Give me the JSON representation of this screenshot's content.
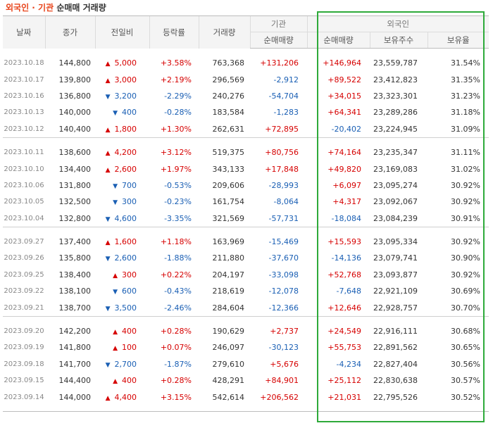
{
  "title": {
    "part1": "외국인",
    "sep": " · ",
    "part2": "기관",
    "part3": " 순매매 거래량"
  },
  "headers": {
    "date": "날짜",
    "close": "종가",
    "change": "전일비",
    "rate": "등락률",
    "volume": "거래량",
    "institution": "기관",
    "foreign": "외국인",
    "inst_net": "순매매량",
    "foreign_net": "순매매량",
    "foreign_holdings": "보유주수",
    "foreign_ratio": "보유율"
  },
  "colors": {
    "up": "#d60000",
    "down": "#1a5fb4",
    "highlight": "#2eaa3a",
    "title_accent": "#e8431a"
  },
  "groups": [
    [
      {
        "date": "2023.10.18",
        "close": "144,800",
        "dir": "up",
        "change": "5,000",
        "rate": "+3.58%",
        "volume": "763,368",
        "inst": "+131,206",
        "fnet": "+146,964",
        "fhold": "23,559,787",
        "fratio": "31.54%"
      },
      {
        "date": "2023.10.17",
        "close": "139,800",
        "dir": "up",
        "change": "3,000",
        "rate": "+2.19%",
        "volume": "296,569",
        "inst": "-2,912",
        "fnet": "+89,522",
        "fhold": "23,412,823",
        "fratio": "31.35%"
      },
      {
        "date": "2023.10.16",
        "close": "136,800",
        "dir": "down",
        "change": "3,200",
        "rate": "-2.29%",
        "volume": "240,276",
        "inst": "-54,704",
        "fnet": "+34,015",
        "fhold": "23,323,301",
        "fratio": "31.23%"
      },
      {
        "date": "2023.10.13",
        "close": "140,000",
        "dir": "down",
        "change": "400",
        "rate": "-0.28%",
        "volume": "183,584",
        "inst": "-1,283",
        "fnet": "+64,341",
        "fhold": "23,289,286",
        "fratio": "31.18%"
      },
      {
        "date": "2023.10.12",
        "close": "140,400",
        "dir": "up",
        "change": "1,800",
        "rate": "+1.30%",
        "volume": "262,631",
        "inst": "+72,895",
        "fnet": "-20,402",
        "fhold": "23,224,945",
        "fratio": "31.09%"
      }
    ],
    [
      {
        "date": "2023.10.11",
        "close": "138,600",
        "dir": "up",
        "change": "4,200",
        "rate": "+3.12%",
        "volume": "519,375",
        "inst": "+80,756",
        "fnet": "+74,164",
        "fhold": "23,235,347",
        "fratio": "31.11%"
      },
      {
        "date": "2023.10.10",
        "close": "134,400",
        "dir": "up",
        "change": "2,600",
        "rate": "+1.97%",
        "volume": "343,133",
        "inst": "+17,848",
        "fnet": "+49,820",
        "fhold": "23,169,083",
        "fratio": "31.02%"
      },
      {
        "date": "2023.10.06",
        "close": "131,800",
        "dir": "down",
        "change": "700",
        "rate": "-0.53%",
        "volume": "209,606",
        "inst": "-28,993",
        "fnet": "+6,097",
        "fhold": "23,095,274",
        "fratio": "30.92%"
      },
      {
        "date": "2023.10.05",
        "close": "132,500",
        "dir": "down",
        "change": "300",
        "rate": "-0.23%",
        "volume": "161,754",
        "inst": "-8,064",
        "fnet": "+4,317",
        "fhold": "23,092,067",
        "fratio": "30.92%"
      },
      {
        "date": "2023.10.04",
        "close": "132,800",
        "dir": "down",
        "change": "4,600",
        "rate": "-3.35%",
        "volume": "321,569",
        "inst": "-57,731",
        "fnet": "-18,084",
        "fhold": "23,084,239",
        "fratio": "30.91%"
      }
    ],
    [
      {
        "date": "2023.09.27",
        "close": "137,400",
        "dir": "up",
        "change": "1,600",
        "rate": "+1.18%",
        "volume": "163,969",
        "inst": "-15,469",
        "fnet": "+15,593",
        "fhold": "23,095,334",
        "fratio": "30.92%"
      },
      {
        "date": "2023.09.26",
        "close": "135,800",
        "dir": "down",
        "change": "2,600",
        "rate": "-1.88%",
        "volume": "211,880",
        "inst": "-37,670",
        "fnet": "-14,136",
        "fhold": "23,079,741",
        "fratio": "30.90%"
      },
      {
        "date": "2023.09.25",
        "close": "138,400",
        "dir": "up",
        "change": "300",
        "rate": "+0.22%",
        "volume": "204,197",
        "inst": "-33,098",
        "fnet": "+52,768",
        "fhold": "23,093,877",
        "fratio": "30.92%"
      },
      {
        "date": "2023.09.22",
        "close": "138,100",
        "dir": "down",
        "change": "600",
        "rate": "-0.43%",
        "volume": "218,619",
        "inst": "-12,078",
        "fnet": "-7,648",
        "fhold": "22,921,109",
        "fratio": "30.69%"
      },
      {
        "date": "2023.09.21",
        "close": "138,700",
        "dir": "down",
        "change": "3,500",
        "rate": "-2.46%",
        "volume": "284,604",
        "inst": "-12,366",
        "fnet": "+12,646",
        "fhold": "22,928,757",
        "fratio": "30.70%"
      }
    ],
    [
      {
        "date": "2023.09.20",
        "close": "142,200",
        "dir": "up",
        "change": "400",
        "rate": "+0.28%",
        "volume": "190,629",
        "inst": "+2,737",
        "fnet": "+24,549",
        "fhold": "22,916,111",
        "fratio": "30.68%"
      },
      {
        "date": "2023.09.19",
        "close": "141,800",
        "dir": "up",
        "change": "100",
        "rate": "+0.07%",
        "volume": "246,097",
        "inst": "-30,123",
        "fnet": "+55,753",
        "fhold": "22,891,562",
        "fratio": "30.65%"
      },
      {
        "date": "2023.09.18",
        "close": "141,700",
        "dir": "down",
        "change": "2,700",
        "rate": "-1.87%",
        "volume": "279,610",
        "inst": "+5,676",
        "fnet": "-4,234",
        "fhold": "22,827,404",
        "fratio": "30.56%"
      },
      {
        "date": "2023.09.15",
        "close": "144,400",
        "dir": "up",
        "change": "400",
        "rate": "+0.28%",
        "volume": "428,291",
        "inst": "+84,901",
        "fnet": "+25,112",
        "fhold": "22,830,638",
        "fratio": "30.57%"
      },
      {
        "date": "2023.09.14",
        "close": "144,000",
        "dir": "up",
        "change": "4,400",
        "rate": "+3.15%",
        "volume": "542,614",
        "inst": "+206,562",
        "fnet": "+21,031",
        "fhold": "22,795,526",
        "fratio": "30.52%"
      }
    ]
  ]
}
